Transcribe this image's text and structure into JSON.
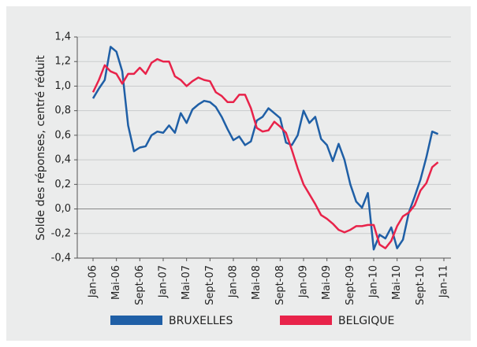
{
  "chart_data": {
    "type": "line",
    "y_label": "Solde des réponses, centré réduit",
    "categories": [
      "Jan-06",
      null,
      null,
      null,
      "Mai-06",
      null,
      null,
      null,
      "Sept-06",
      null,
      null,
      null,
      "Jan-07",
      null,
      null,
      null,
      "Mai-07",
      null,
      null,
      null,
      "Sept-07",
      null,
      null,
      null,
      "Jan-08",
      null,
      null,
      null,
      "Mai-08",
      null,
      null,
      null,
      "Sept-08",
      null,
      null,
      null,
      "Jan-09",
      null,
      null,
      null,
      "Mai-09",
      null,
      null,
      null,
      "Sept-09",
      null,
      null,
      null,
      "Jan-10",
      null,
      null,
      null,
      "Mai-10",
      null,
      null,
      null,
      "Sept-10",
      null,
      null,
      null,
      "Jan-11"
    ],
    "series": [
      {
        "name": "BRUXELLES",
        "color": "#1f5fa6",
        "values": [
          0.9,
          0.98,
          1.05,
          1.32,
          1.28,
          1.12,
          0.68,
          0.47,
          0.5,
          0.51,
          0.6,
          0.63,
          0.62,
          0.68,
          0.62,
          0.78,
          0.7,
          0.81,
          0.85,
          0.88,
          0.87,
          0.83,
          0.75,
          0.65,
          0.56,
          0.59,
          0.52,
          0.55,
          0.72,
          0.75,
          0.82,
          0.78,
          0.74,
          0.54,
          0.52,
          0.6,
          0.8,
          0.7,
          0.75,
          0.57,
          0.52,
          0.39,
          0.53,
          0.4,
          0.2,
          0.06,
          0.01,
          0.13,
          -0.33,
          -0.21,
          -0.24,
          -0.15,
          -0.32,
          -0.25,
          -0.03,
          0.1,
          0.24,
          0.42,
          0.63,
          0.61,
          null
        ]
      },
      {
        "name": "BELGIQUE",
        "color": "#e8234a",
        "values": [
          0.95,
          1.05,
          1.17,
          1.12,
          1.1,
          1.02,
          1.1,
          1.1,
          1.15,
          1.1,
          1.19,
          1.22,
          1.2,
          1.2,
          1.08,
          1.05,
          1.0,
          1.04,
          1.07,
          1.05,
          1.04,
          0.95,
          0.92,
          0.87,
          0.87,
          0.93,
          0.93,
          0.82,
          0.66,
          0.63,
          0.64,
          0.71,
          0.67,
          0.62,
          0.48,
          0.33,
          0.2,
          0.12,
          0.04,
          -0.05,
          -0.08,
          -0.12,
          -0.17,
          -0.19,
          -0.17,
          -0.14,
          -0.14,
          -0.13,
          -0.13,
          -0.29,
          -0.32,
          -0.26,
          -0.14,
          -0.06,
          -0.03,
          0.03,
          0.15,
          0.21,
          0.34,
          0.38,
          null
        ]
      }
    ],
    "ylim": [
      -0.4,
      1.4
    ],
    "yticks": [
      {
        "value": -0.4,
        "label": "-0,4"
      },
      {
        "value": -0.2,
        "label": "-0,2"
      },
      {
        "value": 0,
        "label": "0,0"
      },
      {
        "value": 0.2,
        "label": "0,2"
      },
      {
        "value": 0.4,
        "label": "0,4"
      },
      {
        "value": 0.6,
        "label": "0,6"
      },
      {
        "value": 0.8,
        "label": "0,8"
      },
      {
        "value": 1.0,
        "label": "1,0"
      },
      {
        "value": 1.2,
        "label": "1,2"
      },
      {
        "value": 1.4,
        "label": "1,4"
      }
    ],
    "grid": true,
    "legend": "bottom"
  }
}
